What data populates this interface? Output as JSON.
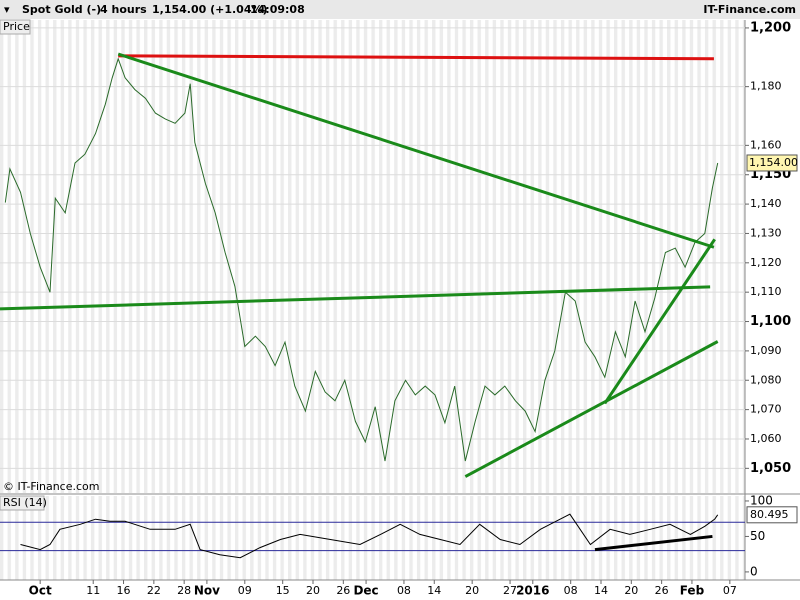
{
  "header": {
    "instrument": "Spot Gold (-)",
    "period": "4 hours",
    "quote": "1,154.00 (+1.04%)",
    "time": "14:09:08",
    "brand": "IT-Finance.com"
  },
  "chart_data": [
    {
      "type": "line",
      "panel_label": "Price",
      "watermark": "© IT-Finance.com",
      "color": "#2a6a2a",
      "x": [
        -4.6,
        -4,
        -2.6,
        -1.3,
        0,
        1.3,
        2,
        3.3,
        4.6,
        5.9,
        7.3,
        8.6,
        9.5,
        10.3,
        11.2,
        12.5,
        13.9,
        15.2,
        16.5,
        17.8,
        19.1,
        19.8,
        20.4,
        21.8,
        23.1,
        24.4,
        25.7,
        27,
        28.4,
        29.7,
        31,
        32.3,
        33.6,
        35,
        36.3,
        37.6,
        38.9,
        40.2,
        41.6,
        42.9,
        44.2,
        45.5,
        46.8,
        48.2,
        49.5,
        50.8,
        52.1,
        53.4,
        54.7,
        56.1,
        57.4,
        58.7,
        60,
        61.3,
        62.7,
        64,
        65.3,
        66.6,
        67.9,
        69.3,
        70.6,
        71.9,
        73.2,
        74.5,
        75.9,
        77.2,
        78.5,
        79.8,
        81.1,
        82.5,
        83.8,
        85.1,
        86.4,
        87.7,
        88.7,
        89.4
      ],
      "values": [
        1140.5,
        1152,
        1144,
        1130,
        1118.5,
        1110,
        1142,
        1137,
        1154,
        1157,
        1164,
        1174,
        1183,
        1189.5,
        1183,
        1179,
        1176,
        1171,
        1169,
        1167.5,
        1171,
        1181,
        1161,
        1147,
        1137,
        1123.5,
        1112,
        1091.5,
        1095,
        1091.5,
        1085,
        1093,
        1078,
        1069.5,
        1083,
        1076,
        1073,
        1080,
        1066,
        1059,
        1071,
        1052.5,
        1073,
        1080,
        1075,
        1078,
        1075,
        1065.5,
        1078,
        1052.5,
        1066,
        1078,
        1075,
        1078,
        1073,
        1069.5,
        1062.5,
        1080,
        1090,
        1110,
        1107,
        1093,
        1088,
        1081,
        1096.5,
        1088,
        1107,
        1096.5,
        1108,
        1123.5,
        1125,
        1118.5,
        1127,
        1130,
        1145.5,
        1154
      ],
      "last_value_label": "1,154.00",
      "xlim": [
        -5.3,
        93
      ],
      "ylim": [
        1041.6,
        1202.7
      ],
      "yticks": [
        {
          "value": 1200,
          "label": "1,200"
        },
        {
          "value": 1180,
          "label": "1,180"
        },
        {
          "value": 1160,
          "label": "1,160"
        },
        {
          "value": 1150,
          "label": "1,150"
        },
        {
          "value": 1140,
          "label": "1,140"
        },
        {
          "value": 1130,
          "label": "1,130"
        },
        {
          "value": 1120,
          "label": "1,120"
        },
        {
          "value": 1110,
          "label": "1,110"
        },
        {
          "value": 1100,
          "label": "1,100"
        },
        {
          "value": 1090,
          "label": "1,090"
        },
        {
          "value": 1080,
          "label": "1,080"
        },
        {
          "value": 1070,
          "label": "1,070"
        },
        {
          "value": 1060,
          "label": "1,060"
        },
        {
          "value": 1050,
          "label": "1,050"
        }
      ],
      "grid": true,
      "trendlines": [
        {
          "color": "#dd1111",
          "points": [
            [
              10.3,
              1190.5
            ],
            [
              88.9,
              1189.5
            ]
          ]
        },
        {
          "color": "#1a8a1a",
          "points": [
            [
              10.3,
              1191.1
            ],
            [
              88.9,
              1125.3
            ]
          ]
        },
        {
          "color": "#1a8a1a",
          "points": [
            [
              -5.3,
              1104.3
            ],
            [
              88.4,
              1111.8
            ]
          ]
        },
        {
          "color": "#1a8a1a",
          "points": [
            [
              74.5,
              1072.1
            ],
            [
              89.0,
              1128
            ]
          ]
        },
        {
          "color": "#1a8a1a",
          "points": [
            [
              56.1,
              1047.2
            ],
            [
              89.4,
              1093.2
            ]
          ]
        }
      ]
    },
    {
      "type": "line",
      "panel_label": "RSI (14)",
      "color": "#000000",
      "x": [
        -2.6,
        0,
        1.3,
        2.6,
        5.3,
        7.3,
        9.2,
        11.2,
        14.5,
        17.8,
        19.8,
        21.1,
        23.7,
        26.4,
        29,
        31.7,
        34.3,
        38.3,
        42.2,
        44.9,
        47.5,
        50.1,
        52.8,
        55.4,
        58,
        60.7,
        63.3,
        66,
        68.6,
        69.9,
        72.6,
        75.2,
        77.8,
        80.5,
        83.1,
        85.8,
        87.7,
        89,
        89.4
      ],
      "values": [
        38.6,
        31.4,
        38.6,
        60,
        67.1,
        74.3,
        71.4,
        71.4,
        60,
        60,
        67.1,
        31.4,
        24.3,
        20,
        34.3,
        45.7,
        52.9,
        45.7,
        38.6,
        52.9,
        67.1,
        52.9,
        45.7,
        38.6,
        67.1,
        45.7,
        38.6,
        60,
        74.3,
        81.4,
        38.6,
        60,
        52.9,
        60,
        67.1,
        52.9,
        64.3,
        74.3,
        80.495
      ],
      "xlim": [
        -5.3,
        93
      ],
      "ylim": [
        -11.4,
        107
      ],
      "yticks": [
        100,
        50,
        0
      ],
      "bands": [
        30,
        70
      ],
      "band_color": "#2a2a9a",
      "trendlines": [
        {
          "color": "#000000",
          "points": [
            [
              73.2,
              31.4
            ],
            [
              88.7,
              50
            ]
          ]
        }
      ],
      "xticks": [
        {
          "value": 0,
          "label": "Oct"
        },
        {
          "value": 7,
          "label": "11"
        },
        {
          "value": 11,
          "label": "16"
        },
        {
          "value": 15,
          "label": "22"
        },
        {
          "value": 19,
          "label": "28"
        },
        {
          "value": 22,
          "label": "Nov"
        },
        {
          "value": 27,
          "label": "09"
        },
        {
          "value": 32,
          "label": "15"
        },
        {
          "value": 36,
          "label": "20"
        },
        {
          "value": 40,
          "label": "26"
        },
        {
          "value": 43,
          "label": "Dec"
        },
        {
          "value": 48,
          "label": "08"
        },
        {
          "value": 52,
          "label": "14"
        },
        {
          "value": 57,
          "label": "20"
        },
        {
          "value": 62,
          "label": "27"
        },
        {
          "value": 65,
          "label": "2016"
        },
        {
          "value": 70,
          "label": "08"
        },
        {
          "value": 74,
          "label": "14"
        },
        {
          "value": 78,
          "label": "20"
        },
        {
          "value": 82,
          "label": "26"
        },
        {
          "value": 86,
          "label": "Feb"
        },
        {
          "value": 91,
          "label": "07"
        }
      ]
    }
  ]
}
